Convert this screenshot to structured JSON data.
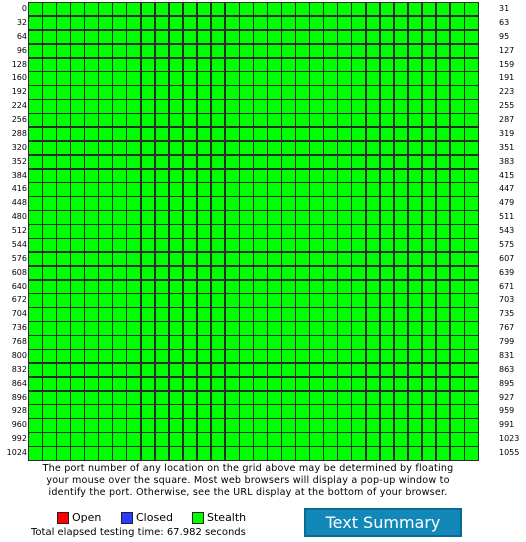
{
  "grid": {
    "ports_per_row": 32,
    "row_count": 33,
    "status": "Stealth",
    "left_labels": [
      "0",
      "32",
      "64",
      "96",
      "128",
      "160",
      "192",
      "224",
      "256",
      "288",
      "320",
      "352",
      "384",
      "416",
      "448",
      "480",
      "512",
      "544",
      "576",
      "608",
      "640",
      "672",
      "704",
      "736",
      "768",
      "800",
      "832",
      "864",
      "896",
      "928",
      "960",
      "992",
      "1024"
    ],
    "right_labels": [
      "31",
      "63",
      "95",
      "127",
      "159",
      "191",
      "223",
      "255",
      "287",
      "319",
      "351",
      "383",
      "415",
      "447",
      "479",
      "511",
      "543",
      "575",
      "607",
      "639",
      "671",
      "703",
      "735",
      "767",
      "799",
      "831",
      "863",
      "895",
      "927",
      "959",
      "991",
      "1023",
      "1055"
    ]
  },
  "caption": {
    "line1": "The port number of any location on the grid above may be determined by floating",
    "line2": "your mouse over the square. Most web browsers will display a pop-up window to",
    "line3": "identify the port. Otherwise, see the URL display at the bottom of your browser."
  },
  "legend": {
    "open_label": "Open",
    "closed_label": "Closed",
    "stealth_label": "Stealth"
  },
  "colors": {
    "open": "#ff0000",
    "closed": "#2a3cff",
    "stealth": "#00ff00"
  },
  "elapsed_text": "Total elapsed testing time: 67.982 seconds",
  "text_summary_button": "Text Summary"
}
